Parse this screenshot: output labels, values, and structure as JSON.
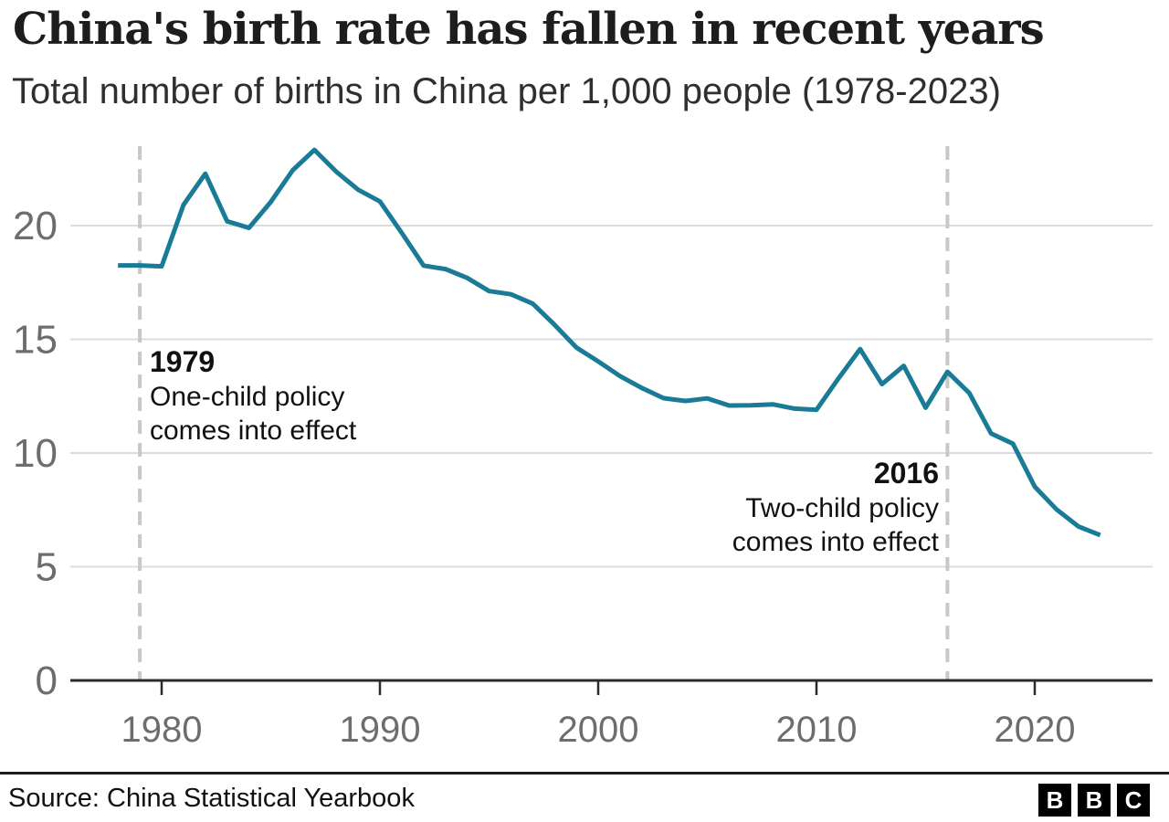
{
  "header": {
    "title": "China's birth rate has fallen in recent years",
    "subtitle": "Total number of births in China per 1,000 people (1978-2023)"
  },
  "chart_data": {
    "type": "line",
    "title": "China's birth rate has fallen in recent years",
    "subtitle": "Total number of births in China per 1,000 people (1978-2023)",
    "series_name": "Births in China per 1,000 people",
    "x": [
      1978,
      1979,
      1980,
      1981,
      1982,
      1983,
      1984,
      1985,
      1986,
      1987,
      1988,
      1989,
      1990,
      1991,
      1992,
      1993,
      1994,
      1995,
      1996,
      1997,
      1998,
      1999,
      2000,
      2001,
      2002,
      2003,
      2004,
      2005,
      2006,
      2007,
      2008,
      2009,
      2010,
      2011,
      2012,
      2013,
      2014,
      2015,
      2016,
      2017,
      2018,
      2019,
      2020,
      2021,
      2022,
      2023
    ],
    "values": [
      18.25,
      18.25,
      18.21,
      20.91,
      22.28,
      20.19,
      19.9,
      21.04,
      22.43,
      23.33,
      22.37,
      21.58,
      21.06,
      19.68,
      18.24,
      18.09,
      17.7,
      17.12,
      16.98,
      16.57,
      15.64,
      14.64,
      14.03,
      13.38,
      12.86,
      12.41,
      12.29,
      12.4,
      12.09,
      12.1,
      12.14,
      11.95,
      11.9,
      13.27,
      14.57,
      13.03,
      13.83,
      11.99,
      13.57,
      12.64,
      10.86,
      10.41,
      8.52,
      7.52,
      6.77,
      6.39
    ],
    "xlabel": "",
    "ylabel": "",
    "xlim": [
      1978,
      2025
    ],
    "ylim": [
      0,
      24
    ],
    "xticks": [
      1980,
      1990,
      2000,
      2010,
      2020
    ],
    "yticks": [
      0,
      5,
      10,
      15,
      20
    ],
    "grid": "horizontal",
    "legend_position": "none",
    "line_color": "#1a7b96",
    "annotations": [
      {
        "year": 1979,
        "label": "1979",
        "lines": [
          "One-child policy",
          "comes into effect"
        ],
        "align": "left"
      },
      {
        "year": 2016,
        "label": "2016",
        "lines": [
          "Two-child policy",
          "comes into effect"
        ],
        "align": "right"
      }
    ]
  },
  "colors": {
    "line": "#1a7b96",
    "gridline": "#dcdcdc",
    "axis": "#2b2b2b",
    "axis_label": "#6d6d6d",
    "dashed_line": "#c8c8c8",
    "title": "#1d1d1d",
    "subtitle": "#2f2f2f"
  },
  "footer": {
    "source": "Source: China Statistical Yearbook",
    "logo_letters": [
      "B",
      "B",
      "C"
    ]
  }
}
